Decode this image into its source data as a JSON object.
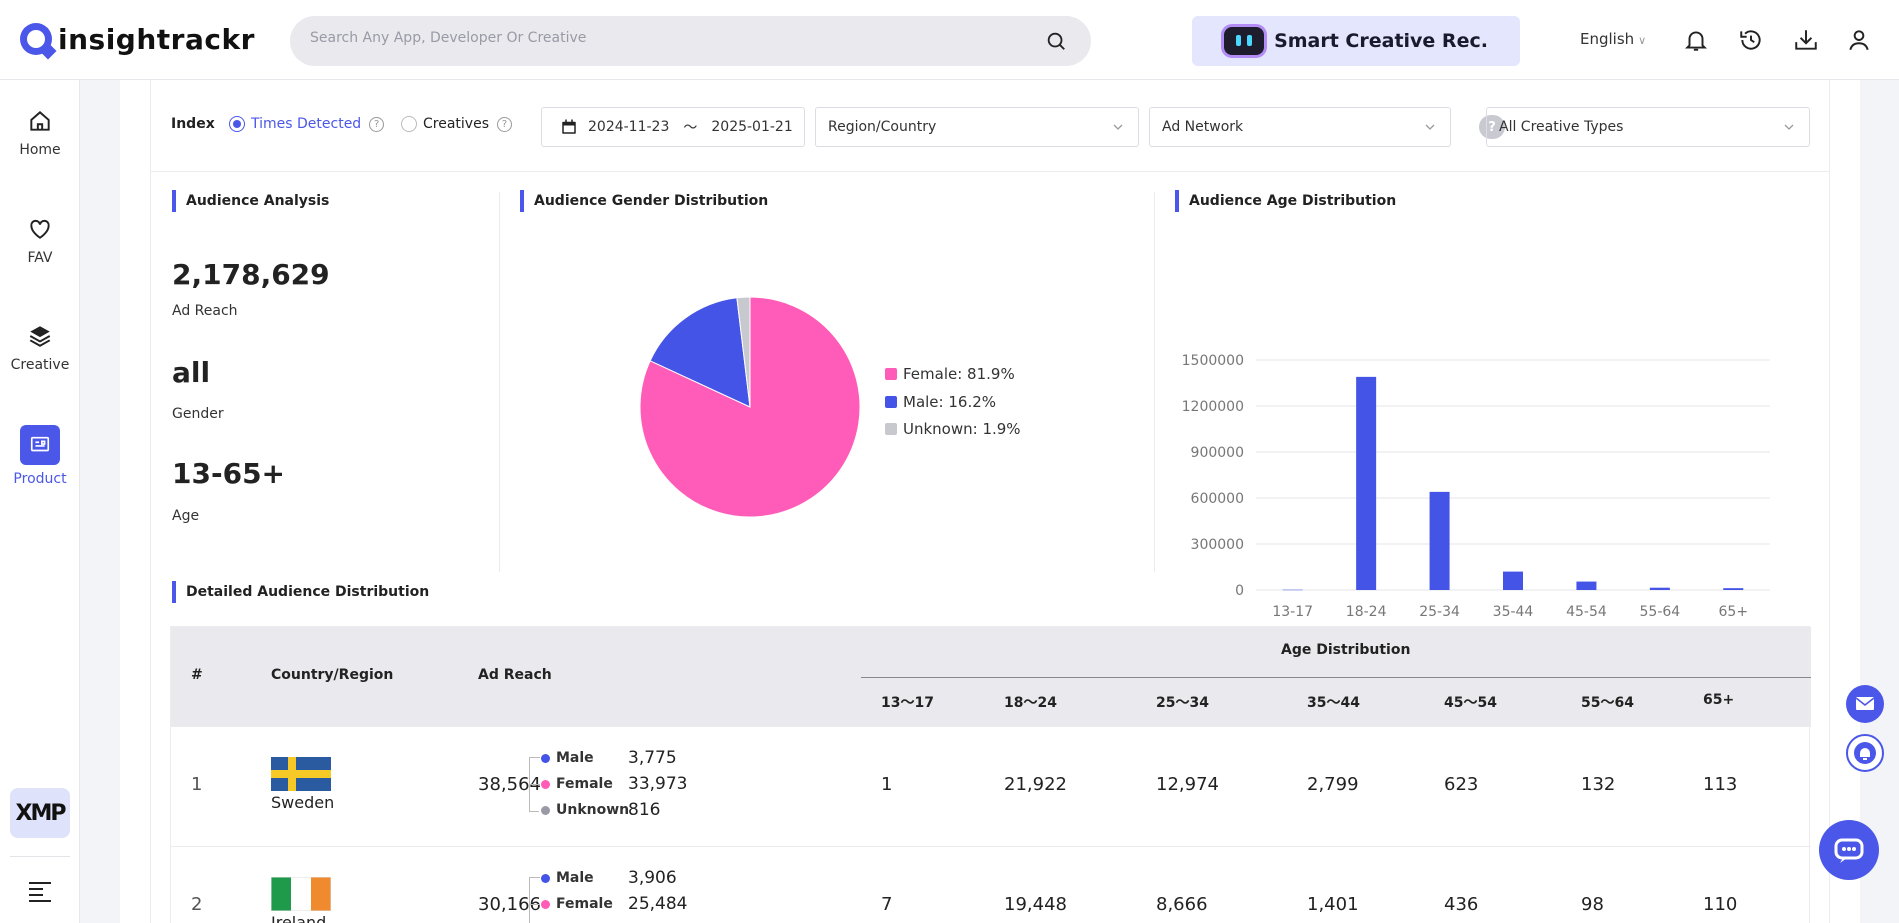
{
  "brand": {
    "name": "insightrackr"
  },
  "search": {
    "placeholder": "Search Any App, Developer Or Creative"
  },
  "smart_button": {
    "label": "Smart Creative Rec."
  },
  "header": {
    "language": "English"
  },
  "sidebar": {
    "items": [
      {
        "label": "Home",
        "icon": "home-icon"
      },
      {
        "label": "FAV",
        "icon": "heart-icon"
      },
      {
        "label": "Creative",
        "icon": "layers-icon"
      },
      {
        "label": "Product",
        "icon": "product-icon"
      }
    ],
    "xmp": "XMP"
  },
  "filters": {
    "index_label": "Index",
    "radio_times": "Times Detected",
    "radio_creatives": "Creatives",
    "date_start": "2024-11-23",
    "date_sep": "〜",
    "date_end": "2025-01-21",
    "region": "Region/Country",
    "network": "Ad Network",
    "creative_types": "All Creative Types",
    "help": "?"
  },
  "analysis": {
    "title": "Audience Analysis",
    "reach_value": "2,178,629",
    "reach_label": "Ad Reach",
    "gender_value": "all",
    "gender_label": "Gender",
    "age_value": "13-65+",
    "age_label": "Age"
  },
  "gender_dist": {
    "title": "Audience Gender Distribution",
    "legend": [
      {
        "label": "Female: 81.9%",
        "color": "#ff5bb8"
      },
      {
        "label": "Male: 16.2%",
        "color": "#4454e6"
      },
      {
        "label": "Unknown: 1.9%",
        "color": "#c8c8cf"
      }
    ]
  },
  "age_dist": {
    "title": "Audience Age Distribution"
  },
  "chart_data": [
    {
      "type": "pie",
      "title": "Audience Gender Distribution",
      "categories": [
        "Female",
        "Male",
        "Unknown"
      ],
      "values": [
        81.9,
        16.2,
        1.9
      ],
      "colors": [
        "#ff5bb8",
        "#4454e6",
        "#c8c8cf"
      ]
    },
    {
      "type": "bar",
      "title": "Audience Age Distribution",
      "categories": [
        "13-17",
        "18-24",
        "25-34",
        "35-44",
        "45-54",
        "55-64",
        "65+"
      ],
      "values": [
        2000,
        1390000,
        640000,
        120000,
        55000,
        15000,
        12000
      ],
      "yticks": [
        "0",
        "300000",
        "600000",
        "900000",
        "1200000",
        "1500000"
      ],
      "ylim": [
        0,
        1500000
      ],
      "color": "#4454e6"
    }
  ],
  "detail": {
    "title": "Detailed Audience Distribution",
    "headers": {
      "num": "#",
      "country": "Country/Region",
      "reach": "Ad Reach",
      "age_group": "Age Distribution",
      "ages": [
        "13～17",
        "18～24",
        "25～34",
        "35～44",
        "45～54",
        "55～64",
        "65+"
      ]
    },
    "gender_labels": [
      "Male",
      "Female",
      "Unknown"
    ],
    "rows": [
      {
        "num": "1",
        "country": "Sweden",
        "reach": "38,564",
        "male": "3,775",
        "female": "33,973",
        "unknown": "816",
        "ages": [
          "1",
          "21,922",
          "12,974",
          "2,799",
          "623",
          "132",
          "113"
        ]
      },
      {
        "num": "2",
        "country": "Ireland",
        "reach": "30,166",
        "male": "3,906",
        "female": "25,484",
        "unknown": "",
        "ages": [
          "7",
          "19,448",
          "8,666",
          "1,401",
          "436",
          "98",
          "110"
        ]
      }
    ]
  }
}
